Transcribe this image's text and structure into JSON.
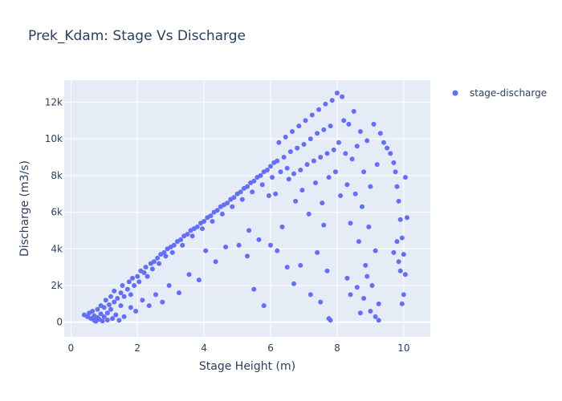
{
  "title": "Prek_Kdam: Stage Vs Discharge",
  "colors": {
    "marker": "#636efa",
    "plot_bg": "#e5ecf6",
    "grid": "#ffffff",
    "text": "#2a3f5f"
  },
  "legend": {
    "placement": "top-right",
    "entries": [
      "stage-discharge"
    ]
  },
  "chart_data": {
    "type": "scatter",
    "title": "Prek_Kdam: Stage Vs Discharge",
    "xlabel": "Stage Height (m)",
    "ylabel": "Discharge (m3/s)",
    "xlim": [
      -0.2,
      10.8
    ],
    "ylim": [
      -800,
      13200
    ],
    "xticks": [
      0,
      2,
      4,
      6,
      8,
      10
    ],
    "xtick_labels": [
      "0",
      "2",
      "4",
      "6",
      "8",
      "10"
    ],
    "yticks": [
      0,
      2000,
      4000,
      6000,
      8000,
      10000,
      12000
    ],
    "ytick_labels": [
      "0",
      "2k",
      "4k",
      "6k",
      "8k",
      "10k",
      "12k"
    ],
    "grid": true,
    "series": [
      {
        "name": "stage-discharge",
        "points": [
          [
            0.4,
            400
          ],
          [
            0.5,
            300
          ],
          [
            0.55,
            500
          ],
          [
            0.6,
            200
          ],
          [
            0.65,
            600
          ],
          [
            0.7,
            100
          ],
          [
            0.7,
            350
          ],
          [
            0.75,
            50
          ],
          [
            0.8,
            250
          ],
          [
            0.8,
            700
          ],
          [
            0.85,
            150
          ],
          [
            0.9,
            450
          ],
          [
            0.9,
            900
          ],
          [
            0.95,
            60
          ],
          [
            1.0,
            300
          ],
          [
            1.0,
            800
          ],
          [
            1.05,
            1200
          ],
          [
            1.1,
            500
          ],
          [
            1.1,
            120
          ],
          [
            1.15,
            950
          ],
          [
            1.2,
            1400
          ],
          [
            1.2,
            700
          ],
          [
            1.25,
            200
          ],
          [
            1.3,
            1100
          ],
          [
            1.3,
            1700
          ],
          [
            1.35,
            400
          ],
          [
            1.4,
            1300
          ],
          [
            1.45,
            100
          ],
          [
            1.5,
            1600
          ],
          [
            1.5,
            900
          ],
          [
            1.55,
            2000
          ],
          [
            1.6,
            1400
          ],
          [
            1.6,
            300
          ],
          [
            1.7,
            1800
          ],
          [
            1.75,
            2200
          ],
          [
            1.8,
            1500
          ],
          [
            1.8,
            800
          ],
          [
            1.85,
            2400
          ],
          [
            1.9,
            2000
          ],
          [
            1.95,
            600
          ],
          [
            2.0,
            2500
          ],
          [
            2.05,
            2200
          ],
          [
            2.1,
            2800
          ],
          [
            2.15,
            1200
          ],
          [
            2.2,
            2700
          ],
          [
            2.25,
            3000
          ],
          [
            2.3,
            2500
          ],
          [
            2.35,
            900
          ],
          [
            2.4,
            3200
          ],
          [
            2.45,
            2900
          ],
          [
            2.5,
            3300
          ],
          [
            2.55,
            1500
          ],
          [
            2.6,
            3500
          ],
          [
            2.65,
            3200
          ],
          [
            2.7,
            3700
          ],
          [
            2.75,
            1100
          ],
          [
            2.8,
            3800
          ],
          [
            2.85,
            3600
          ],
          [
            2.9,
            4000
          ],
          [
            2.95,
            2000
          ],
          [
            3.0,
            4100
          ],
          [
            3.05,
            3800
          ],
          [
            3.1,
            4200
          ],
          [
            3.2,
            4400
          ],
          [
            3.25,
            1600
          ],
          [
            3.3,
            4500
          ],
          [
            3.35,
            4200
          ],
          [
            3.4,
            4700
          ],
          [
            3.5,
            4800
          ],
          [
            3.55,
            2600
          ],
          [
            3.6,
            5000
          ],
          [
            3.65,
            4700
          ],
          [
            3.7,
            5100
          ],
          [
            3.8,
            5200
          ],
          [
            3.85,
            2300
          ],
          [
            3.9,
            5400
          ],
          [
            3.95,
            5100
          ],
          [
            4.0,
            5500
          ],
          [
            4.05,
            3900
          ],
          [
            4.1,
            5700
          ],
          [
            4.2,
            5800
          ],
          [
            4.25,
            5500
          ],
          [
            4.3,
            6000
          ],
          [
            4.35,
            3300
          ],
          [
            4.4,
            6100
          ],
          [
            4.5,
            6300
          ],
          [
            4.55,
            5900
          ],
          [
            4.6,
            6400
          ],
          [
            4.65,
            4100
          ],
          [
            4.7,
            6500
          ],
          [
            4.8,
            6700
          ],
          [
            4.85,
            6300
          ],
          [
            4.9,
            6800
          ],
          [
            5.0,
            7000
          ],
          [
            5.05,
            4200
          ],
          [
            5.1,
            7100
          ],
          [
            5.15,
            6700
          ],
          [
            5.2,
            7300
          ],
          [
            5.3,
            7400
          ],
          [
            5.35,
            5000
          ],
          [
            5.4,
            7600
          ],
          [
            5.45,
            7100
          ],
          [
            5.5,
            7700
          ],
          [
            5.6,
            7900
          ],
          [
            5.65,
            4500
          ],
          [
            5.7,
            8000
          ],
          [
            5.75,
            7500
          ],
          [
            5.8,
            8200
          ],
          [
            5.9,
            8300
          ],
          [
            5.95,
            6900
          ],
          [
            6.0,
            8500
          ],
          [
            6.05,
            7900
          ],
          [
            6.1,
            8700
          ],
          [
            6.15,
            7000
          ],
          [
            6.2,
            8800
          ],
          [
            6.25,
            9800
          ],
          [
            6.3,
            8200
          ],
          [
            6.35,
            5200
          ],
          [
            6.4,
            9000
          ],
          [
            6.45,
            10100
          ],
          [
            6.5,
            8400
          ],
          [
            6.55,
            7800
          ],
          [
            6.6,
            9300
          ],
          [
            6.65,
            10400
          ],
          [
            6.7,
            8100
          ],
          [
            6.75,
            6600
          ],
          [
            6.8,
            9500
          ],
          [
            6.85,
            10700
          ],
          [
            6.9,
            8300
          ],
          [
            6.95,
            7200
          ],
          [
            7.0,
            9700
          ],
          [
            7.05,
            11000
          ],
          [
            7.1,
            8600
          ],
          [
            7.15,
            5900
          ],
          [
            7.2,
            10000
          ],
          [
            7.25,
            11300
          ],
          [
            7.3,
            8800
          ],
          [
            7.35,
            7600
          ],
          [
            7.4,
            10300
          ],
          [
            7.45,
            11600
          ],
          [
            7.5,
            9000
          ],
          [
            7.55,
            6500
          ],
          [
            7.6,
            10500
          ],
          [
            7.65,
            11900
          ],
          [
            7.7,
            9200
          ],
          [
            7.75,
            7900
          ],
          [
            7.8,
            10700
          ],
          [
            7.85,
            12100
          ],
          [
            7.9,
            9400
          ],
          [
            7.95,
            8200
          ],
          [
            6.0,
            4200
          ],
          [
            6.2,
            3900
          ],
          [
            6.5,
            3000
          ],
          [
            6.7,
            2100
          ],
          [
            5.5,
            1800
          ],
          [
            5.3,
            3600
          ],
          [
            5.8,
            900
          ],
          [
            6.9,
            3100
          ],
          [
            7.2,
            1500
          ],
          [
            7.5,
            1100
          ],
          [
            7.4,
            3800
          ],
          [
            7.6,
            5300
          ],
          [
            7.7,
            2800
          ],
          [
            7.75,
            200
          ],
          [
            7.8,
            100
          ],
          [
            8.0,
            12500
          ],
          [
            8.05,
            9800
          ],
          [
            8.1,
            6900
          ],
          [
            8.15,
            12300
          ],
          [
            8.2,
            11000
          ],
          [
            8.25,
            9200
          ],
          [
            8.3,
            7500
          ],
          [
            8.35,
            10800
          ],
          [
            8.4,
            5400
          ],
          [
            8.45,
            8900
          ],
          [
            8.5,
            11500
          ],
          [
            8.55,
            7000
          ],
          [
            8.6,
            9600
          ],
          [
            8.65,
            4400
          ],
          [
            8.7,
            10400
          ],
          [
            8.75,
            6300
          ],
          [
            8.8,
            8200
          ],
          [
            8.85,
            3100
          ],
          [
            8.9,
            9900
          ],
          [
            8.95,
            5200
          ],
          [
            9.0,
            7400
          ],
          [
            9.05,
            2000
          ],
          [
            9.1,
            10800
          ],
          [
            9.15,
            3900
          ],
          [
            9.2,
            8600
          ],
          [
            9.25,
            1000
          ],
          [
            8.6,
            1900
          ],
          [
            8.7,
            500
          ],
          [
            8.8,
            1300
          ],
          [
            8.9,
            2500
          ],
          [
            9.0,
            600
          ],
          [
            9.15,
            300
          ],
          [
            9.25,
            100
          ],
          [
            8.3,
            2400
          ],
          [
            8.4,
            1500
          ],
          [
            9.3,
            10300
          ],
          [
            9.4,
            9800
          ],
          [
            9.5,
            9500
          ],
          [
            9.6,
            9200
          ],
          [
            9.7,
            8700
          ],
          [
            9.75,
            8200
          ],
          [
            9.8,
            7400
          ],
          [
            9.85,
            6600
          ],
          [
            9.9,
            5600
          ],
          [
            9.95,
            4600
          ],
          [
            10.0,
            3700
          ],
          [
            10.05,
            2600
          ],
          [
            10.0,
            1500
          ],
          [
            9.9,
            2800
          ],
          [
            9.8,
            4400
          ],
          [
            9.7,
            3800
          ],
          [
            10.05,
            7900
          ],
          [
            10.1,
            5700
          ],
          [
            9.95,
            1000
          ],
          [
            9.85,
            3300
          ]
        ]
      }
    ]
  }
}
